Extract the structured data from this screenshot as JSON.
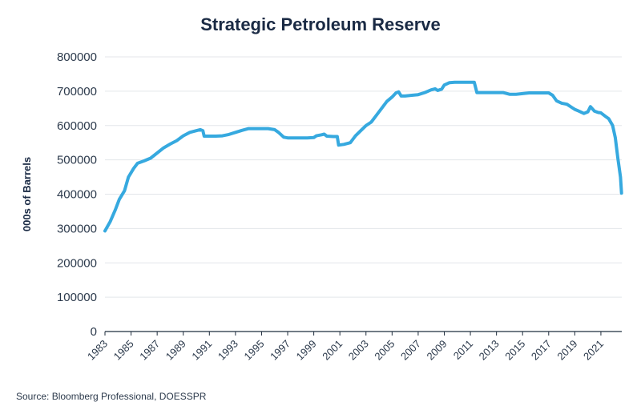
{
  "chart_data": {
    "type": "line",
    "title": "Strategic Petroleum Reserve",
    "ylabel": "000s of Barrels",
    "xlabel": "",
    "source": "Source: Bloomberg Professional, DOESSPR",
    "ylim": [
      0,
      800000
    ],
    "xlim": [
      1983,
      2022.6
    ],
    "yticks": [
      0,
      100000,
      200000,
      300000,
      400000,
      500000,
      600000,
      700000,
      800000
    ],
    "ytick_labels": [
      "0",
      "100000",
      "200000",
      "300000",
      "400000",
      "500000",
      "600000",
      "700000",
      "800000"
    ],
    "xticks": [
      1983,
      1985,
      1987,
      1989,
      1991,
      1993,
      1995,
      1997,
      1999,
      2001,
      2003,
      2005,
      2007,
      2009,
      2011,
      2013,
      2015,
      2017,
      2019,
      2021
    ],
    "grid": "horizontal",
    "line_color": "#36a9df",
    "series": [
      {
        "name": "",
        "x": [
          1983.0,
          1983.4,
          1983.8,
          1984.1,
          1984.5,
          1984.8,
          1985.2,
          1985.5,
          1986.0,
          1986.5,
          1987.0,
          1987.5,
          1988.0,
          1988.5,
          1989.0,
          1989.5,
          1990.0,
          1990.3,
          1990.5,
          1990.6,
          1991.0,
          1991.5,
          1992.0,
          1992.5,
          1993.0,
          1993.5,
          1994.0,
          1994.5,
          1995.0,
          1995.5,
          1996.0,
          1996.3,
          1996.7,
          1997.0,
          1997.5,
          1998.0,
          1998.5,
          1999.0,
          1999.2,
          1999.6,
          1999.8,
          2000.0,
          2000.5,
          2000.8,
          2000.9,
          2001.3,
          2001.8,
          2002.2,
          2002.6,
          2003.0,
          2003.4,
          2003.8,
          2004.2,
          2004.6,
          2005.0,
          2005.3,
          2005.5,
          2005.7,
          2006.0,
          2006.5,
          2007.0,
          2007.5,
          2008.0,
          2008.3,
          2008.5,
          2008.8,
          2009.0,
          2009.4,
          2009.8,
          2010.5,
          2011.0,
          2011.3,
          2011.5,
          2011.6,
          2012.0,
          2012.5,
          2013.0,
          2013.5,
          2014.0,
          2014.5,
          2015.0,
          2015.5,
          2016.0,
          2016.5,
          2017.0,
          2017.3,
          2017.6,
          2018.0,
          2018.4,
          2018.8,
          2019.0,
          2019.3,
          2019.7,
          2020.0,
          2020.2,
          2020.5,
          2020.8,
          2021.0,
          2021.3,
          2021.6,
          2021.9,
          2022.1,
          2022.3,
          2022.5,
          2022.58
        ],
        "values": [
          293000,
          320000,
          355000,
          385000,
          410000,
          450000,
          475000,
          490000,
          497000,
          505000,
          520000,
          535000,
          546000,
          556000,
          570000,
          580000,
          585000,
          588000,
          585000,
          569000,
          569000,
          569000,
          570000,
          574000,
          580000,
          586000,
          591000,
          591000,
          591000,
          591000,
          588000,
          580000,
          566000,
          564000,
          564000,
          564000,
          564000,
          565000,
          570000,
          573000,
          575000,
          569000,
          568000,
          568000,
          543000,
          545000,
          550000,
          570000,
          585000,
          600000,
          610000,
          630000,
          650000,
          670000,
          683000,
          695000,
          698000,
          686000,
          686000,
          688000,
          690000,
          696000,
          704000,
          707000,
          702000,
          706000,
          718000,
          725000,
          726000,
          726000,
          726000,
          726000,
          696000,
          696000,
          696000,
          696000,
          696000,
          696000,
          691000,
          691000,
          693000,
          695000,
          695000,
          695000,
          695000,
          688000,
          672000,
          665000,
          662000,
          652000,
          647000,
          642000,
          635000,
          640000,
          655000,
          642000,
          638000,
          637000,
          628000,
          620000,
          600000,
          565000,
          505000,
          450000,
          403000
        ]
      }
    ]
  }
}
